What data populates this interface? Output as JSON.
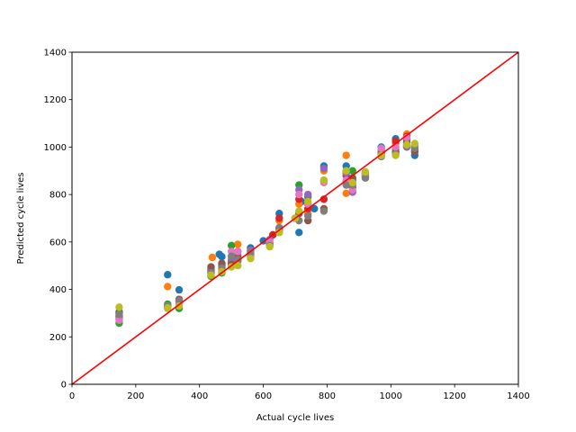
{
  "chart_data": {
    "type": "scatter",
    "title": "",
    "xlabel": "Actual cycle lives",
    "ylabel": "Predicted cycle lives",
    "xlim": [
      0,
      1400
    ],
    "ylim": [
      0,
      1400
    ],
    "xticks": [
      0,
      200,
      400,
      600,
      800,
      1000,
      1200,
      1400
    ],
    "yticks": [
      0,
      200,
      400,
      600,
      800,
      1000,
      1200,
      1400
    ],
    "grid": false,
    "reference_line": {
      "x": [
        0,
        1400
      ],
      "y": [
        0,
        1400
      ],
      "color": "#ff0000"
    },
    "series": [
      {
        "color": "#1f77b4",
        "points": [
          [
            148,
            305
          ],
          [
            300,
            462
          ],
          [
            336,
            398
          ],
          [
            436,
            470
          ],
          [
            462,
            548
          ],
          [
            470,
            538
          ],
          [
            500,
            520
          ],
          [
            520,
            560
          ],
          [
            560,
            575
          ],
          [
            600,
            605
          ],
          [
            630,
            630
          ],
          [
            650,
            720
          ],
          [
            700,
            700
          ],
          [
            712,
            640
          ],
          [
            720,
            770
          ],
          [
            740,
            760
          ],
          [
            760,
            740
          ],
          [
            790,
            920
          ],
          [
            860,
            920
          ],
          [
            880,
            860
          ],
          [
            920,
            880
          ],
          [
            970,
            1000
          ],
          [
            1015,
            1035
          ],
          [
            1050,
            1030
          ],
          [
            1075,
            965
          ]
        ]
      },
      {
        "color": "#ff7f0e",
        "points": [
          [
            148,
            290
          ],
          [
            300,
            412
          ],
          [
            336,
            355
          ],
          [
            440,
            535
          ],
          [
            470,
            490
          ],
          [
            500,
            540
          ],
          [
            520,
            590
          ],
          [
            560,
            560
          ],
          [
            620,
            600
          ],
          [
            650,
            690
          ],
          [
            712,
            760
          ],
          [
            740,
            720
          ],
          [
            790,
            900
          ],
          [
            860,
            965
          ],
          [
            860,
            805
          ],
          [
            920,
            880
          ],
          [
            970,
            990
          ],
          [
            1015,
            1015
          ],
          [
            1050,
            1055
          ],
          [
            1075,
            990
          ]
        ]
      },
      {
        "color": "#2ca02c",
        "points": [
          [
            148,
            258
          ],
          [
            300,
            338
          ],
          [
            336,
            320
          ],
          [
            436,
            455
          ],
          [
            470,
            470
          ],
          [
            500,
            585
          ],
          [
            520,
            520
          ],
          [
            560,
            540
          ],
          [
            620,
            590
          ],
          [
            650,
            640
          ],
          [
            712,
            840
          ],
          [
            740,
            790
          ],
          [
            790,
            860
          ],
          [
            860,
            900
          ],
          [
            880,
            900
          ],
          [
            920,
            870
          ],
          [
            970,
            975
          ],
          [
            1015,
            975
          ],
          [
            1050,
            1010
          ],
          [
            1075,
            1005
          ]
        ]
      },
      {
        "color": "#d62728",
        "points": [
          [
            148,
            285
          ],
          [
            300,
            330
          ],
          [
            336,
            350
          ],
          [
            436,
            480
          ],
          [
            470,
            500
          ],
          [
            500,
            510
          ],
          [
            520,
            530
          ],
          [
            560,
            550
          ],
          [
            630,
            630
          ],
          [
            650,
            700
          ],
          [
            712,
            780
          ],
          [
            740,
            740
          ],
          [
            790,
            780
          ],
          [
            860,
            880
          ],
          [
            880,
            830
          ],
          [
            920,
            890
          ],
          [
            970,
            980
          ],
          [
            1015,
            1025
          ],
          [
            1050,
            1045
          ],
          [
            1075,
            995
          ]
        ]
      },
      {
        "color": "#9467bd",
        "points": [
          [
            148,
            275
          ],
          [
            300,
            325
          ],
          [
            336,
            340
          ],
          [
            436,
            490
          ],
          [
            470,
            505
          ],
          [
            500,
            525
          ],
          [
            520,
            545
          ],
          [
            560,
            565
          ],
          [
            620,
            610
          ],
          [
            650,
            660
          ],
          [
            712,
            820
          ],
          [
            740,
            800
          ],
          [
            790,
            910
          ],
          [
            860,
            890
          ],
          [
            880,
            810
          ],
          [
            920,
            880
          ],
          [
            970,
            985
          ],
          [
            1015,
            990
          ],
          [
            1050,
            1000
          ],
          [
            1075,
            985
          ]
        ]
      },
      {
        "color": "#8c564b",
        "points": [
          [
            148,
            300
          ],
          [
            300,
            328
          ],
          [
            336,
            358
          ],
          [
            436,
            495
          ],
          [
            470,
            510
          ],
          [
            500,
            505
          ],
          [
            520,
            535
          ],
          [
            560,
            545
          ],
          [
            620,
            595
          ],
          [
            650,
            650
          ],
          [
            712,
            720
          ],
          [
            740,
            690
          ],
          [
            790,
            740
          ],
          [
            860,
            850
          ],
          [
            880,
            870
          ],
          [
            920,
            875
          ],
          [
            970,
            970
          ],
          [
            1015,
            980
          ],
          [
            1050,
            1020
          ],
          [
            1075,
            980
          ]
        ]
      },
      {
        "color": "#e377c2",
        "points": [
          [
            148,
            270
          ],
          [
            300,
            320
          ],
          [
            336,
            345
          ],
          [
            436,
            465
          ],
          [
            470,
            480
          ],
          [
            500,
            560
          ],
          [
            520,
            560
          ],
          [
            560,
            540
          ],
          [
            620,
            600
          ],
          [
            650,
            645
          ],
          [
            712,
            800
          ],
          [
            740,
            760
          ],
          [
            790,
            850
          ],
          [
            860,
            860
          ],
          [
            880,
            820
          ],
          [
            920,
            885
          ],
          [
            970,
            995
          ],
          [
            1015,
            1000
          ],
          [
            1050,
            1040
          ],
          [
            1075,
            1000
          ]
        ]
      },
      {
        "color": "#7f7f7f",
        "points": [
          [
            148,
            295
          ],
          [
            300,
            332
          ],
          [
            336,
            352
          ],
          [
            436,
            470
          ],
          [
            470,
            490
          ],
          [
            500,
            540
          ],
          [
            520,
            525
          ],
          [
            560,
            555
          ],
          [
            620,
            585
          ],
          [
            650,
            660
          ],
          [
            712,
            690
          ],
          [
            740,
            710
          ],
          [
            790,
            730
          ],
          [
            860,
            840
          ],
          [
            880,
            840
          ],
          [
            920,
            870
          ],
          [
            970,
            960
          ],
          [
            1015,
            970
          ],
          [
            1050,
            1005
          ],
          [
            1075,
            995
          ]
        ]
      },
      {
        "color": "#bcbd22",
        "points": [
          [
            148,
            325
          ],
          [
            300,
            322
          ],
          [
            336,
            330
          ],
          [
            436,
            460
          ],
          [
            470,
            475
          ],
          [
            500,
            495
          ],
          [
            520,
            500
          ],
          [
            560,
            530
          ],
          [
            620,
            580
          ],
          [
            650,
            640
          ],
          [
            700,
            700
          ],
          [
            712,
            730
          ],
          [
            740,
            770
          ],
          [
            790,
            860
          ],
          [
            860,
            900
          ],
          [
            880,
            850
          ],
          [
            920,
            895
          ],
          [
            970,
            965
          ],
          [
            1015,
            965
          ],
          [
            1050,
            1010
          ],
          [
            1075,
            1015
          ]
        ]
      }
    ]
  }
}
